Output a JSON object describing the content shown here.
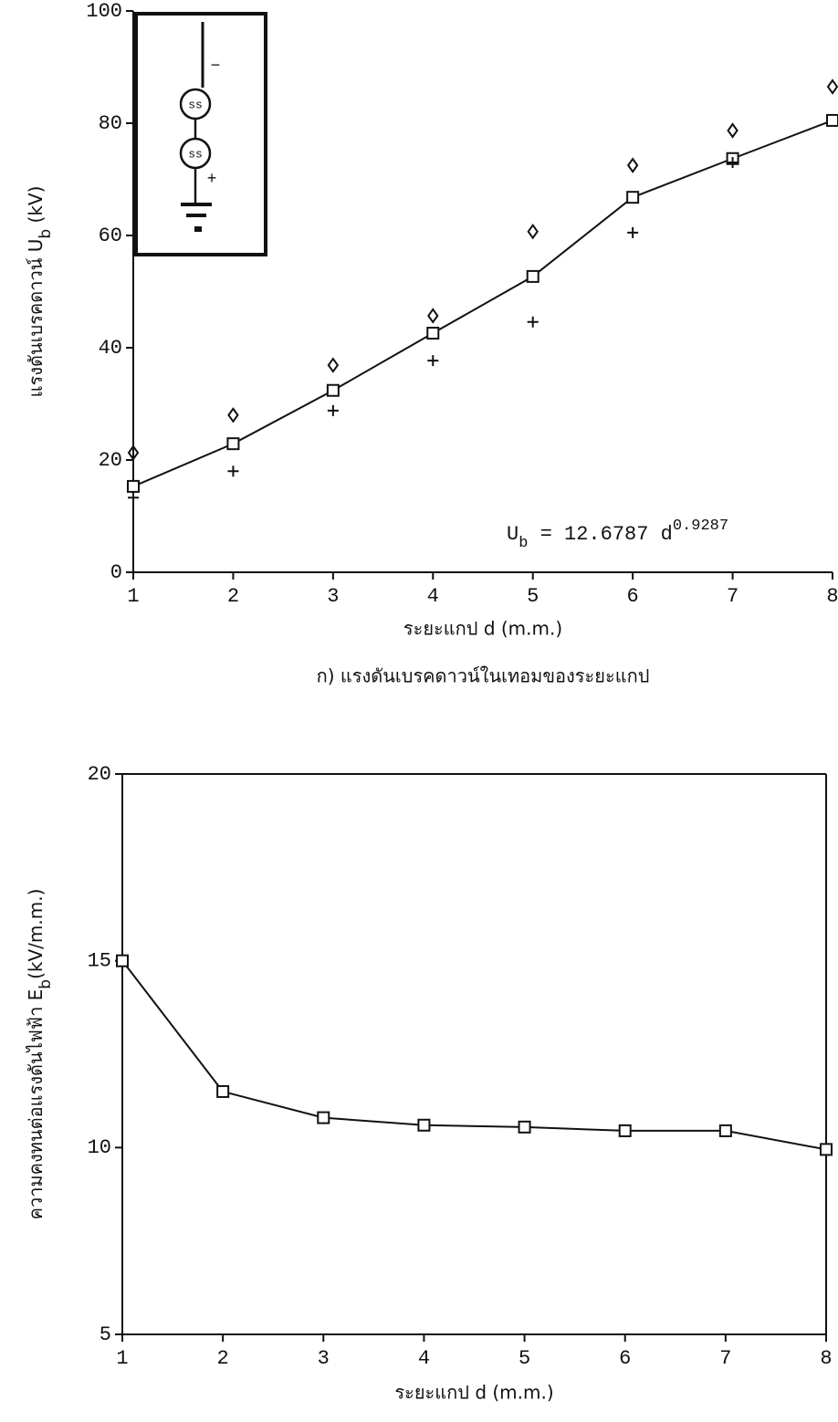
{
  "chart_data": [
    {
      "type": "line",
      "y_label": [
        {
          "text": "แรงดันเบรคดาวน์ U"
        },
        {
          "text": "b",
          "sub": true
        },
        {
          "text": " (kV)"
        }
      ],
      "x_label": "ระยะแกป d (m.m.)",
      "caption": "ก) แรงดันเบรคดาวน์ในเทอมของระยะแกป",
      "annotation": [
        {
          "text": "U"
        },
        {
          "text": "b",
          "sub": true
        },
        {
          "text": " = 12.6787 d"
        },
        {
          "text": "0.9287",
          "sup": true
        }
      ],
      "inset_labels": [
        "ss",
        "ss",
        "−",
        "+"
      ],
      "x": [
        1,
        2,
        3,
        4,
        5,
        6,
        7,
        8
      ],
      "series": [
        {
          "marker": "square",
          "line": true,
          "color": "#111",
          "values": [
            15.3,
            22.9,
            32.4,
            42.6,
            52.7,
            66.8,
            73.7,
            80.5
          ]
        },
        {
          "marker": "diamond",
          "line": false,
          "color": "#111",
          "values": [
            21.3,
            28,
            36.9,
            45.7,
            60.7,
            72.5,
            78.7,
            86.5
          ]
        },
        {
          "marker": "plus",
          "line": false,
          "color": "#111",
          "values": [
            13.3,
            18,
            28.8,
            37.7,
            44.6,
            60.5,
            73,
            null
          ]
        }
      ],
      "xlim": [
        1,
        8
      ],
      "xticks": [
        1,
        2,
        3,
        4,
        5,
        6,
        7,
        8
      ],
      "ylim": [
        0,
        100
      ],
      "yticks": [
        0,
        20,
        40,
        60,
        80,
        100
      ],
      "frame": false
    },
    {
      "type": "line",
      "y_label": [
        {
          "text": "ความคงทนต่อแรงดันไฟฟ้า E"
        },
        {
          "text": "b",
          "sub": true
        },
        {
          "text": "(kV/m.m.)"
        }
      ],
      "x_label": "ระยะแกป d (m.m.)",
      "x": [
        1,
        2,
        3,
        4,
        5,
        6,
        7,
        8
      ],
      "series": [
        {
          "marker": "square",
          "line": true,
          "color": "#111",
          "values": [
            15.0,
            11.5,
            10.8,
            10.6,
            10.55,
            10.45,
            10.45,
            9.95
          ]
        }
      ],
      "xlim": [
        1,
        8
      ],
      "xticks": [
        1,
        2,
        3,
        4,
        5,
        6,
        7,
        8
      ],
      "ylim": [
        5,
        20
      ],
      "yticks": [
        5,
        10,
        15,
        20
      ],
      "frame": true
    }
  ]
}
